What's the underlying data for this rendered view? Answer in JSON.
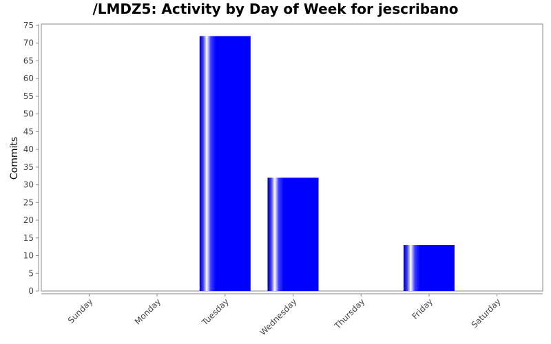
{
  "chart_data": {
    "type": "bar",
    "title": "/LMDZ5: Activity by Day of Week for jescribano",
    "xlabel": "",
    "ylabel": "Commits",
    "categories": [
      "Sunday",
      "Monday",
      "Tuesday",
      "Wednesday",
      "Thursday",
      "Friday",
      "Saturday"
    ],
    "values": [
      0,
      0,
      72,
      32,
      0,
      13,
      0
    ],
    "ylim": [
      0,
      75
    ],
    "yticks": [
      0,
      5,
      10,
      15,
      20,
      25,
      30,
      35,
      40,
      45,
      50,
      55,
      60,
      65,
      70,
      75
    ],
    "grid": false,
    "legend": "none",
    "bar_color": "#0000ff"
  }
}
